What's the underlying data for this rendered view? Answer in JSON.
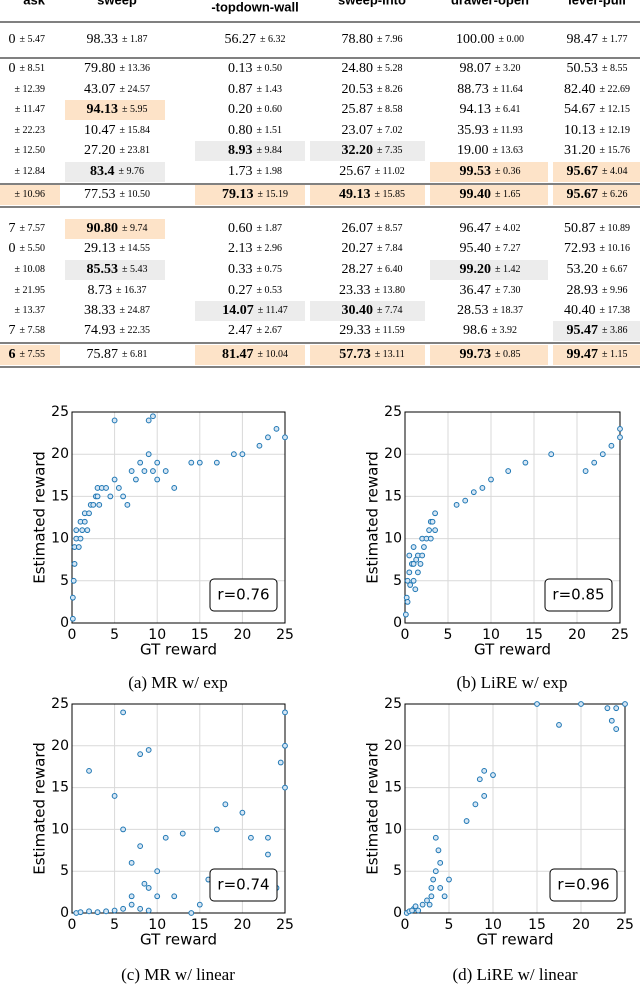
{
  "table": {
    "header": [
      "ask",
      "sweep",
      "-topdown-wall",
      "sweep-into",
      "drawer-open",
      "lever-pull"
    ],
    "rows": [
      [
        {
          "mean": "0",
          "std": "± 5.47"
        },
        {
          "mean": "98.33",
          "std": "± 1.87"
        },
        {
          "mean": "56.27",
          "std": "± 6.32"
        },
        {
          "mean": "78.80",
          "std": "± 7.96"
        },
        {
          "mean": "100.00",
          "std": "± 0.00"
        },
        {
          "mean": "98.47",
          "std": "± 1.77"
        }
      ],
      [
        {
          "mean": "0",
          "std": "± 8.51"
        },
        {
          "mean": "79.80",
          "std": "± 13.36"
        },
        {
          "mean": "0.13",
          "std": "± 0.50"
        },
        {
          "mean": "24.80",
          "std": "± 5.28"
        },
        {
          "mean": "98.07",
          "std": "± 3.20"
        },
        {
          "mean": "50.53",
          "std": "± 8.55"
        }
      ],
      [
        {
          "std": "± 12.39"
        },
        {
          "mean": "43.07",
          "std": "± 24.57"
        },
        {
          "mean": "0.87",
          "std": "± 1.43"
        },
        {
          "mean": "20.53",
          "std": "± 8.26"
        },
        {
          "mean": "88.73",
          "std": "± 11.64"
        },
        {
          "mean": "82.40",
          "std": "± 22.69"
        }
      ],
      [
        {
          "std": "± 11.47"
        },
        {
          "mean": "94.13",
          "std": "± 5.95",
          "bold": true,
          "highlight": "orange"
        },
        {
          "mean": "0.20",
          "std": "± 0.60"
        },
        {
          "mean": "25.87",
          "std": "± 8.58"
        },
        {
          "mean": "94.13",
          "std": "± 6.41"
        },
        {
          "mean": "54.67",
          "std": "± 12.15"
        }
      ],
      [
        {
          "std": "± 22.23"
        },
        {
          "mean": "10.47",
          "std": "± 15.84"
        },
        {
          "mean": "0.80",
          "std": "± 1.51"
        },
        {
          "mean": "23.07",
          "std": "± 7.02"
        },
        {
          "mean": "35.93",
          "std": "± 11.93"
        },
        {
          "mean": "10.13",
          "std": "± 12.19"
        }
      ],
      [
        {
          "std": "± 12.50"
        },
        {
          "mean": "27.20",
          "std": "± 23.81"
        },
        {
          "mean": "8.93",
          "std": "± 9.84",
          "bold": true,
          "highlight": "gray"
        },
        {
          "mean": "32.20",
          "std": "± 7.35",
          "bold": true,
          "highlight": "gray"
        },
        {
          "mean": "19.00",
          "std": "± 13.63"
        },
        {
          "mean": "31.20",
          "std": "± 15.76"
        }
      ],
      [
        {
          "std": "± 12.84"
        },
        {
          "mean": "83.4",
          "std": "± 9.76",
          "bold": true,
          "highlight": "gray"
        },
        {
          "mean": "1.73",
          "std": "± 1.98"
        },
        {
          "mean": "25.67",
          "std": "± 11.02"
        },
        {
          "mean": "99.53",
          "std": "± 0.36",
          "bold": true,
          "highlight": "orange"
        },
        {
          "mean": "95.67",
          "std": "± 4.04",
          "bold": true,
          "highlight": "orange"
        }
      ],
      [
        {
          "std": "± 10.96",
          "highlight": "orange"
        },
        {
          "mean": "77.53",
          "std": "± 10.50"
        },
        {
          "mean": "79.13",
          "std": "± 15.19",
          "bold": true,
          "highlight": "orange"
        },
        {
          "mean": "49.13",
          "std": "± 15.85",
          "bold": true,
          "highlight": "orange"
        },
        {
          "mean": "99.40",
          "std": "± 1.65",
          "bold": true,
          "highlight": "orange"
        },
        {
          "mean": "95.67",
          "std": "± 6.26",
          "bold": true,
          "highlight": "orange"
        }
      ],
      [
        {
          "mean": "7",
          "std": "± 7.57"
        },
        {
          "mean": "90.80",
          "std": "± 9.74",
          "bold": true,
          "highlight": "orange"
        },
        {
          "mean": "0.60",
          "std": "± 1.87"
        },
        {
          "mean": "26.07",
          "std": "± 8.57"
        },
        {
          "mean": "96.47",
          "std": "± 4.02"
        },
        {
          "mean": "50.87",
          "std": "± 10.89"
        }
      ],
      [
        {
          "mean": "0",
          "std": "± 5.50"
        },
        {
          "mean": "29.13",
          "std": "± 14.55"
        },
        {
          "mean": "2.13",
          "std": "± 2.96"
        },
        {
          "mean": "20.27",
          "std": "± 7.84"
        },
        {
          "mean": "95.40",
          "std": "± 7.27"
        },
        {
          "mean": "72.93",
          "std": "± 10.16"
        }
      ],
      [
        {
          "std": "± 10.08"
        },
        {
          "mean": "85.53",
          "std": "± 5.43",
          "bold": true,
          "highlight": "gray"
        },
        {
          "mean": "0.33",
          "std": "± 0.75"
        },
        {
          "mean": "28.27",
          "std": "± 6.40"
        },
        {
          "mean": "99.20",
          "std": "± 1.42",
          "bold": true,
          "highlight": "gray"
        },
        {
          "mean": "53.20",
          "std": "± 6.67"
        }
      ],
      [
        {
          "std": "± 21.95"
        },
        {
          "mean": "8.73",
          "std": "± 16.37"
        },
        {
          "mean": "0.27",
          "std": "± 0.53"
        },
        {
          "mean": "23.33",
          "std": "± 13.80"
        },
        {
          "mean": "36.47",
          "std": "± 7.30"
        },
        {
          "mean": "28.93",
          "std": "± 9.96"
        }
      ],
      [
        {
          "std": "± 13.37"
        },
        {
          "mean": "38.33",
          "std": "± 24.87"
        },
        {
          "mean": "14.07",
          "std": "± 11.47",
          "bold": true,
          "highlight": "gray"
        },
        {
          "mean": "30.40",
          "std": "± 7.74",
          "bold": true,
          "highlight": "gray"
        },
        {
          "mean": "28.53",
          "std": "± 18.37"
        },
        {
          "mean": "40.40",
          "std": "± 17.38"
        }
      ],
      [
        {
          "mean": "7",
          "std": "± 7.58"
        },
        {
          "mean": "74.93",
          "std": "± 22.35"
        },
        {
          "mean": "2.47",
          "std": "± 2.67"
        },
        {
          "mean": "29.33",
          "std": "± 11.59"
        },
        {
          "mean": "98.6",
          "std": "± 3.92"
        },
        {
          "mean": "95.47",
          "std": "± 3.86",
          "bold": true,
          "highlight": "gray"
        }
      ],
      [
        {
          "mean": "6",
          "std": "± 7.55",
          "bold": true,
          "highlight": "orange"
        },
        {
          "mean": "75.87",
          "std": "± 6.81"
        },
        {
          "mean": "81.47",
          "std": "± 10.04",
          "bold": true,
          "highlight": "orange"
        },
        {
          "mean": "57.73",
          "std": "± 13.11",
          "bold": true,
          "highlight": "orange"
        },
        {
          "mean": "99.73",
          "std": "± 0.85",
          "bold": true,
          "highlight": "orange"
        },
        {
          "mean": "99.47",
          "std": "± 1.15",
          "bold": true,
          "highlight": "orange"
        }
      ]
    ]
  },
  "chart_data": [
    {
      "type": "scatter",
      "caption": "(a) MR w/ exp",
      "xlabel": "GT reward",
      "ylabel": "Estimated reward",
      "annotation": "r=0.76",
      "color": "#1f77b4",
      "grid": true,
      "xlim": [
        0,
        25
      ],
      "ylim": [
        0,
        25
      ],
      "xticks": [
        0,
        5,
        10,
        15,
        20,
        25
      ],
      "yticks": [
        0,
        5,
        10,
        15,
        20,
        25
      ],
      "x": [
        0.1,
        0.1,
        0.2,
        0.3,
        0.3,
        0.5,
        0.5,
        0.8,
        1,
        1,
        1.2,
        1.5,
        1.5,
        1.8,
        2,
        2.2,
        2.5,
        2.8,
        3,
        3,
        3.2,
        3.5,
        4,
        4.5,
        5,
        5.5,
        6,
        6.5,
        7,
        7.5,
        8,
        8.5,
        9,
        9,
        9.5,
        10,
        10,
        11,
        12,
        14,
        15,
        17,
        19,
        20,
        22,
        23,
        24,
        25,
        5,
        9.5
      ],
      "values": [
        0.5,
        3,
        5,
        7,
        9,
        10,
        11,
        9,
        10,
        12,
        11,
        12,
        13,
        11,
        13,
        14,
        14,
        15,
        15,
        16,
        14,
        16,
        16,
        15,
        17,
        16,
        15,
        14,
        18,
        17,
        19,
        18,
        20,
        24,
        18,
        17,
        19,
        18,
        16,
        19,
        19,
        19,
        20,
        20,
        21,
        22,
        23,
        22,
        24,
        24.5
      ]
    },
    {
      "type": "scatter",
      "caption": "(b) LiRE w/ exp",
      "xlabel": "GT reward",
      "ylabel": "Estimated reward",
      "annotation": "r=0.85",
      "color": "#1f77b4",
      "grid": true,
      "xlim": [
        0,
        25
      ],
      "ylim": [
        0,
        25
      ],
      "xticks": [
        0,
        5,
        10,
        15,
        20,
        25
      ],
      "yticks": [
        0,
        5,
        10,
        15,
        20,
        25
      ],
      "x": [
        0.1,
        0.2,
        0.3,
        0.5,
        0.5,
        0.8,
        1,
        1,
        1,
        1.2,
        1.5,
        1.5,
        1.8,
        2,
        2,
        2.2,
        2.5,
        2.8,
        3,
        3,
        3.2,
        3.5,
        3.5,
        0.3,
        0.6,
        1.3,
        6,
        7,
        8,
        9,
        10,
        12,
        14,
        17,
        21,
        22,
        23,
        24,
        25,
        25
      ],
      "values": [
        1,
        3,
        5,
        6,
        8,
        7,
        5,
        7,
        9,
        4,
        6,
        8,
        7,
        8,
        10,
        9,
        10,
        11,
        10,
        12,
        12,
        13,
        11,
        2.5,
        4.5,
        7.5,
        14,
        14.5,
        15.5,
        16,
        17,
        18,
        19,
        20,
        18,
        19,
        20,
        21,
        22,
        23
      ]
    },
    {
      "type": "scatter",
      "caption": "(c) MR w/ linear",
      "xlabel": "GT reward",
      "ylabel": "Estimated reward",
      "annotation": "r=0.74",
      "color": "#1f77b4",
      "grid": true,
      "xlim": [
        0,
        25
      ],
      "ylim": [
        0,
        25
      ],
      "xticks": [
        0,
        5,
        10,
        15,
        20,
        25
      ],
      "yticks": [
        0,
        5,
        10,
        15,
        20,
        25
      ],
      "x": [
        0.5,
        1,
        2,
        3,
        4,
        5,
        6,
        7,
        8,
        9,
        2,
        5,
        6,
        8,
        9,
        6,
        7,
        8,
        9,
        10,
        10,
        11,
        12,
        13,
        14,
        15,
        16,
        17,
        18,
        19,
        20,
        21,
        22,
        23,
        24,
        25,
        25,
        24.5,
        25,
        23,
        7,
        8.5
      ],
      "values": [
        0,
        0.1,
        0.2,
        0.1,
        0.2,
        0.3,
        0.5,
        1,
        0.5,
        0.3,
        17,
        14,
        24,
        19,
        19.5,
        10,
        6,
        8,
        3,
        2,
        5,
        9,
        2,
        9.5,
        0,
        1,
        4,
        10,
        13,
        4,
        12,
        9,
        4,
        7,
        3,
        20,
        24,
        18,
        15,
        9,
        2,
        3.5
      ]
    },
    {
      "type": "scatter",
      "caption": "(d) LiRE w/ linear",
      "xlabel": "GT reward",
      "ylabel": "Estimated reward",
      "annotation": "r=0.96",
      "color": "#1f77b4",
      "grid": true,
      "xlim": [
        0,
        25
      ],
      "ylim": [
        0,
        25
      ],
      "xticks": [
        0,
        5,
        10,
        15,
        20,
        25
      ],
      "yticks": [
        0,
        5,
        10,
        15,
        20,
        25
      ],
      "x": [
        0.2,
        0.5,
        1,
        1.5,
        2,
        2.5,
        3,
        3,
        3.2,
        3.5,
        3.5,
        4,
        4,
        3.8,
        2.8,
        1.2,
        0.8,
        4.5,
        5,
        7,
        8,
        8.5,
        9,
        9,
        10,
        15,
        17.5,
        20,
        23,
        23.5,
        24,
        25,
        24
      ],
      "values": [
        0,
        0.2,
        0.5,
        0.3,
        1,
        1.5,
        2,
        3,
        4,
        5,
        9,
        3,
        6,
        7.5,
        1,
        0.8,
        0.3,
        2,
        4,
        11,
        13,
        16,
        17,
        14,
        16.5,
        25,
        22.5,
        25,
        24.5,
        23,
        22,
        25,
        24.5
      ]
    }
  ]
}
